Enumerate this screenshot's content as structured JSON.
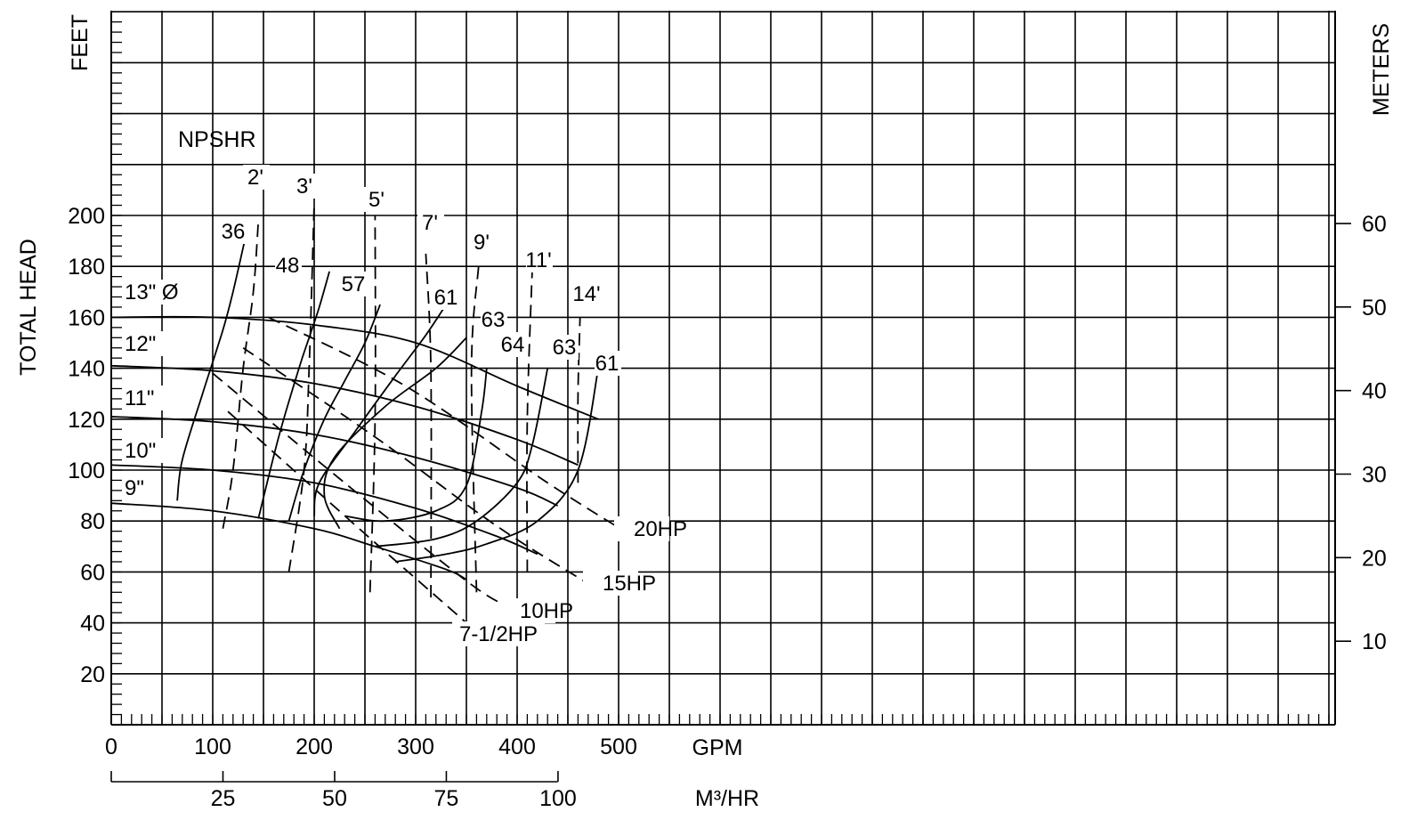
{
  "chart_data": {
    "type": "line",
    "x_axis": {
      "label": "GPM",
      "ticks": [
        0,
        100,
        200,
        300,
        400,
        500
      ],
      "secondary_label": "M³/HR",
      "secondary_ticks": [
        25,
        50,
        75,
        100
      ]
    },
    "y_axis": {
      "left_label": "TOTAL HEAD",
      "left_unit": "FEET",
      "left_ticks": [
        20,
        40,
        60,
        80,
        100,
        120,
        140,
        160,
        180,
        200
      ],
      "right_unit": "METERS",
      "right_ticks": [
        10,
        20,
        30,
        40,
        50,
        60
      ]
    },
    "xlim": [
      0,
      1200
    ],
    "ylim": [
      0,
      280
    ],
    "grid": true,
    "npsh_title": "NPSHR",
    "impeller_curves": [
      {
        "name": "13\" Ø",
        "points": [
          [
            0,
            160
          ],
          [
            100,
            160
          ],
          [
            200,
            157
          ],
          [
            300,
            150
          ],
          [
            400,
            133
          ],
          [
            480,
            120
          ]
        ]
      },
      {
        "name": "12\"",
        "points": [
          [
            0,
            141
          ],
          [
            100,
            139
          ],
          [
            200,
            134
          ],
          [
            300,
            125
          ],
          [
            400,
            112
          ],
          [
            460,
            102
          ]
        ]
      },
      {
        "name": "11\"",
        "points": [
          [
            0,
            121
          ],
          [
            100,
            119
          ],
          [
            200,
            114
          ],
          [
            300,
            105
          ],
          [
            400,
            93
          ],
          [
            440,
            86
          ]
        ]
      },
      {
        "name": "10\"",
        "points": [
          [
            0,
            102
          ],
          [
            100,
            100
          ],
          [
            200,
            95
          ],
          [
            300,
            85
          ],
          [
            380,
            74
          ],
          [
            420,
            67
          ]
        ]
      },
      {
        "name": "9\"",
        "points": [
          [
            0,
            87
          ],
          [
            100,
            84
          ],
          [
            200,
            77
          ],
          [
            260,
            70
          ],
          [
            330,
            61
          ],
          [
            350,
            57
          ]
        ]
      }
    ],
    "efficiency_curves": [
      {
        "label": "36",
        "points": [
          [
            65,
            88
          ],
          [
            70,
            104
          ],
          [
            90,
            130
          ],
          [
            110,
            155
          ],
          [
            120,
            170
          ],
          [
            132,
            191
          ]
        ]
      },
      {
        "label": "48",
        "points": [
          [
            145,
            81
          ],
          [
            165,
            113
          ],
          [
            185,
            140
          ],
          [
            195,
            152
          ],
          [
            205,
            164
          ],
          [
            215,
            178
          ]
        ]
      },
      {
        "label": "57",
        "points": [
          [
            175,
            80
          ],
          [
            190,
            100
          ],
          [
            210,
            120
          ],
          [
            230,
            135
          ],
          [
            250,
            150
          ],
          [
            265,
            165
          ]
        ]
      },
      {
        "label": "61",
        "points": [
          [
            200,
            82
          ],
          [
            205,
            95
          ],
          [
            240,
            115
          ],
          [
            280,
            137
          ],
          [
            310,
            153
          ],
          [
            330,
            165
          ]
        ]
      },
      {
        "label": "63",
        "points": [
          [
            225,
            77
          ],
          [
            210,
            90
          ],
          [
            220,
            105
          ],
          [
            270,
            125
          ],
          [
            320,
            140
          ],
          [
            350,
            152
          ]
        ]
      },
      {
        "label": "64",
        "points": [
          [
            230,
            82
          ],
          [
            270,
            80
          ],
          [
            320,
            84
          ],
          [
            350,
            94
          ],
          [
            365,
            123
          ],
          [
            370,
            140
          ]
        ]
      },
      {
        "label": "63",
        "points": [
          [
            260,
            70
          ],
          [
            320,
            73
          ],
          [
            360,
            80
          ],
          [
            400,
            95
          ],
          [
            415,
            110
          ],
          [
            430,
            140
          ]
        ]
      },
      {
        "label": "61",
        "points": [
          [
            280,
            64
          ],
          [
            330,
            67
          ],
          [
            370,
            71
          ],
          [
            420,
            80
          ],
          [
            460,
            100
          ],
          [
            480,
            140
          ]
        ]
      }
    ],
    "npsh_curves": [
      {
        "label": "2'",
        "points": [
          [
            110,
            77
          ],
          [
            120,
            100
          ],
          [
            130,
            140
          ],
          [
            140,
            170
          ],
          [
            145,
            198
          ]
        ]
      },
      {
        "label": "3'",
        "points": [
          [
            175,
            60
          ],
          [
            190,
            100
          ],
          [
            195,
            140
          ],
          [
            200,
            205
          ]
        ]
      },
      {
        "label": "5'",
        "points": [
          [
            255,
            52
          ],
          [
            260,
            120
          ],
          [
            260,
            200
          ]
        ]
      },
      {
        "label": "7'",
        "points": [
          [
            315,
            50
          ],
          [
            315,
            140
          ],
          [
            310,
            185
          ]
        ]
      },
      {
        "label": "9'",
        "points": [
          [
            360,
            52
          ],
          [
            355,
            140
          ],
          [
            362,
            180
          ]
        ]
      },
      {
        "label": "11'",
        "points": [
          [
            410,
            60
          ],
          [
            410,
            120
          ],
          [
            415,
            180
          ]
        ]
      },
      {
        "label": "14'",
        "points": [
          [
            460,
            95
          ],
          [
            460,
            130
          ],
          [
            462,
            160
          ]
        ]
      }
    ],
    "horsepower_lines": [
      {
        "label": "7-1/2HP",
        "points": [
          [
            115,
            123
          ],
          [
            250,
            75
          ],
          [
            350,
            40
          ]
        ]
      },
      {
        "label": "10HP",
        "points": [
          [
            100,
            138
          ],
          [
            230,
            95
          ],
          [
            355,
            55
          ],
          [
            400,
            45
          ]
        ]
      },
      {
        "label": "15HP",
        "points": [
          [
            130,
            148
          ],
          [
            260,
            113
          ],
          [
            380,
            78
          ],
          [
            480,
            53
          ]
        ]
      },
      {
        "label": "20HP",
        "points": [
          [
            155,
            160
          ],
          [
            290,
            133
          ],
          [
            430,
            95
          ],
          [
            510,
            75
          ]
        ]
      }
    ],
    "curve_labels": {
      "impeller": [
        "13\" Ø",
        "12\"",
        "11\"",
        "10\"",
        "9\""
      ],
      "efficiency": [
        "36",
        "48",
        "57",
        "61",
        "63",
        "64",
        "63",
        "61"
      ],
      "npsh": [
        "2'",
        "3'",
        "5'",
        "7'",
        "9'",
        "11'",
        "14'"
      ],
      "horsepower": [
        "7-1/2HP",
        "10HP",
        "15HP",
        "20HP"
      ]
    }
  }
}
